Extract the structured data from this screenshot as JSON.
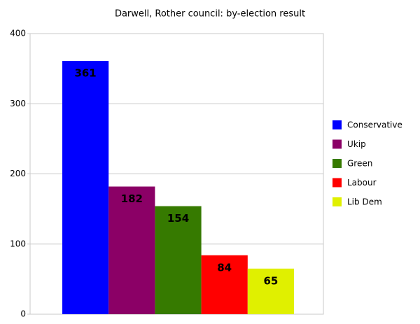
{
  "chart_data": {
    "type": "bar",
    "title": "Darwell, Rother council: by-election result",
    "categories": [
      null
    ],
    "series": [
      {
        "name": "Conservative",
        "color": "#0000ff",
        "values": [
          361
        ]
      },
      {
        "name": "Ukip",
        "color": "#8b0066",
        "values": [
          182
        ]
      },
      {
        "name": "Green",
        "color": "#367a00",
        "values": [
          154
        ]
      },
      {
        "name": "Labour",
        "color": "#ff0000",
        "values": [
          84
        ]
      },
      {
        "name": "Lib Dem",
        "color": "#e0f000",
        "values": [
          65
        ]
      }
    ],
    "ylim": [
      0,
      400
    ],
    "yticks": [
      0,
      100,
      200,
      300,
      400
    ],
    "grid": true,
    "legend": "right",
    "data_labels": true
  }
}
